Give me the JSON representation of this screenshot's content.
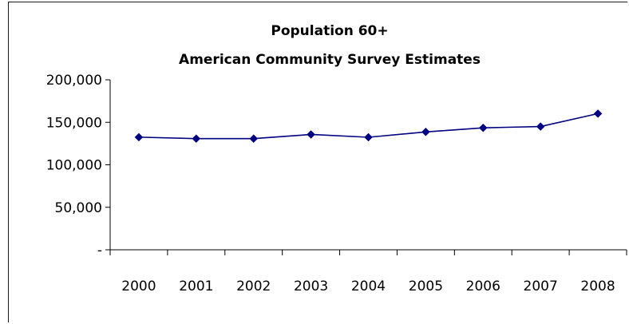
{
  "chart_data": {
    "type": "line",
    "title": "Population 60+",
    "subtitle": "American Community Survey Estimates",
    "xlabel": "",
    "ylabel": "",
    "categories": [
      "2000",
      "2001",
      "2002",
      "2003",
      "2004",
      "2005",
      "2006",
      "2007",
      "2008"
    ],
    "series": [
      {
        "values": [
          132500,
          130800,
          130800,
          135700,
          132400,
          138700,
          143500,
          145000,
          160200
        ],
        "color": "#000080"
      }
    ],
    "ylim": [
      0,
      200000
    ],
    "yticks": [
      0,
      50000,
      100000,
      150000,
      200000
    ],
    "ytick_labels": [
      "-",
      "50,000",
      "100,000",
      "150,000",
      "200,000"
    ],
    "grid": false,
    "legend": "none"
  }
}
